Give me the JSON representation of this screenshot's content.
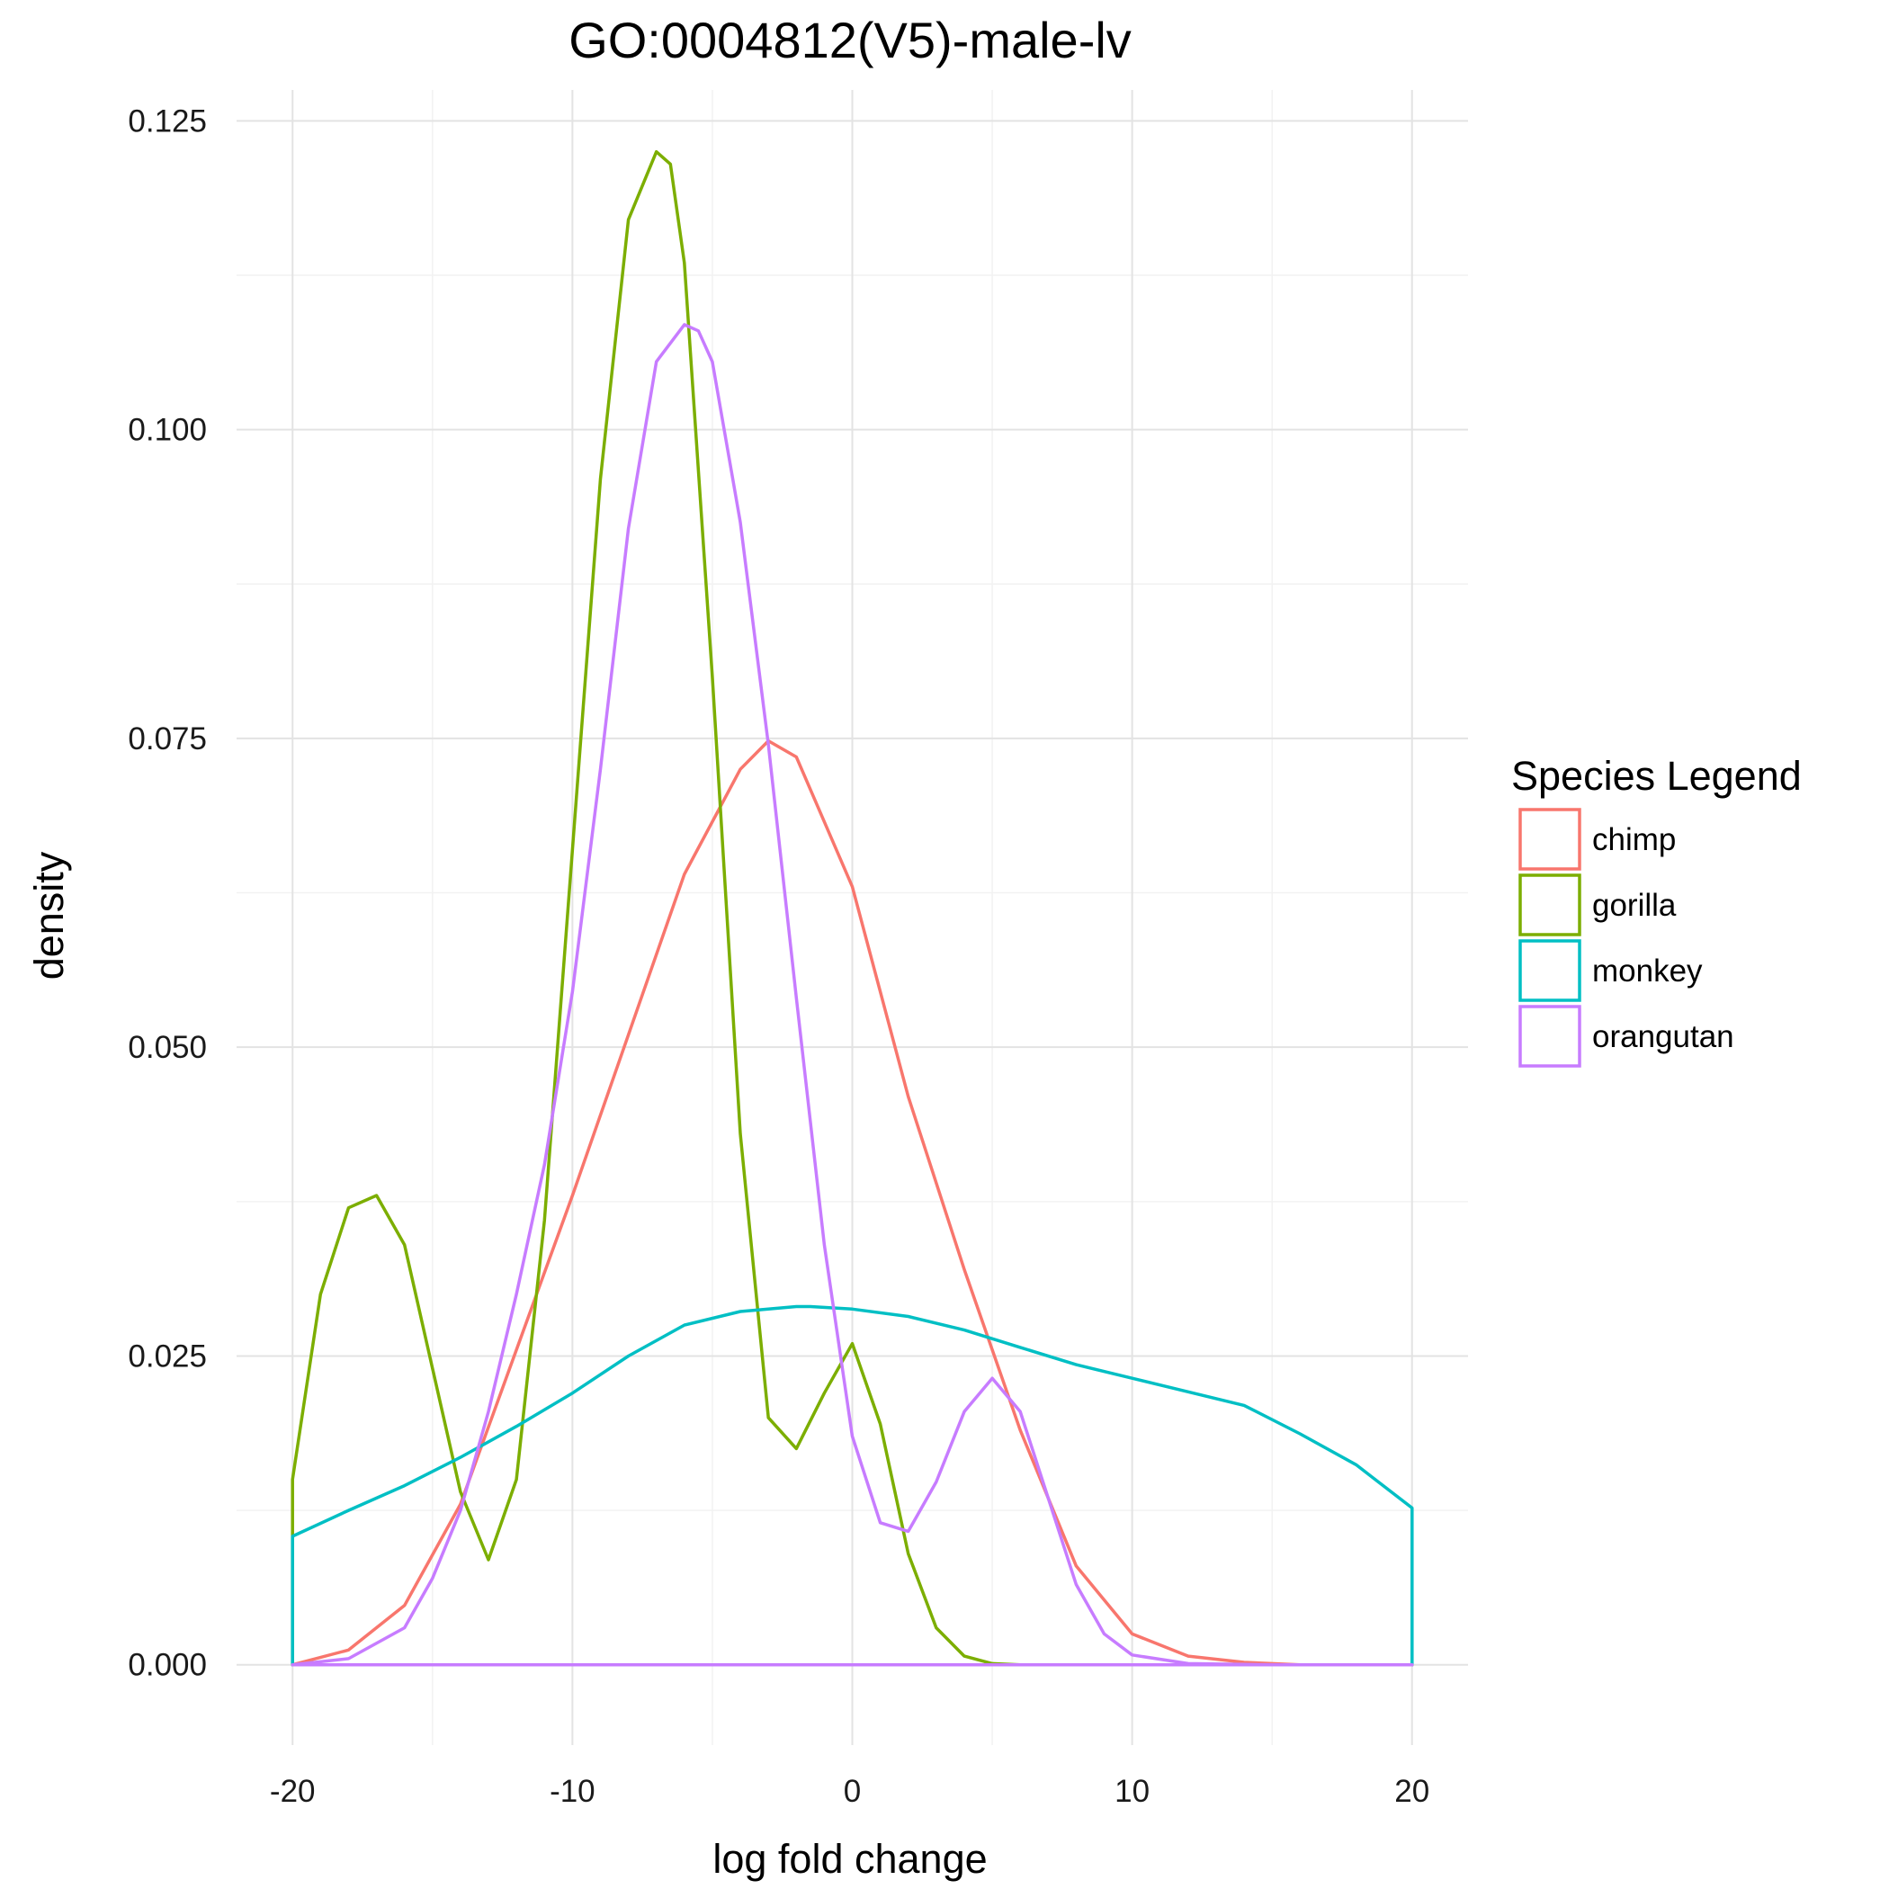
{
  "chart_data": {
    "type": "line",
    "title": "GO:0004812(V5)-male-lv",
    "xlabel": "log fold change",
    "ylabel": "density",
    "xlim": [
      -22,
      22
    ],
    "ylim": [
      -0.0065,
      0.1275
    ],
    "x_ticks": [
      -20,
      -10,
      0,
      10,
      20
    ],
    "x_tick_labels": [
      "-20",
      "-10",
      "0",
      "10",
      "20"
    ],
    "y_ticks": [
      0,
      0.025,
      0.05,
      0.075,
      0.1,
      0.125
    ],
    "y_tick_labels": [
      "0.000",
      "0.025",
      "0.050",
      "0.075",
      "0.100",
      "0.125"
    ],
    "grid": true,
    "legend": {
      "title": "Species Legend",
      "position": "right"
    },
    "series": [
      {
        "name": "chimp",
        "color": "#F8766D",
        "x": [
          -20,
          -18,
          -16,
          -14,
          -12,
          -10,
          -8,
          -6,
          -4,
          -3,
          -2,
          0,
          2,
          4,
          6,
          8,
          10,
          12,
          14,
          16,
          18,
          20
        ],
        "y": [
          0,
          0.0012,
          0.0048,
          0.013,
          0.0255,
          0.038,
          0.051,
          0.064,
          0.0725,
          0.0748,
          0.0735,
          0.063,
          0.046,
          0.032,
          0.019,
          0.008,
          0.0025,
          0.0007,
          0.0002,
          0,
          0,
          0
        ]
      },
      {
        "name": "gorilla",
        "color": "#7CAE00",
        "x": [
          -20,
          -19,
          -18,
          -17,
          -16,
          -15,
          -14,
          -13,
          -12,
          -11,
          -10,
          -9,
          -8,
          -7,
          -6.5,
          -6,
          -5,
          -4,
          -3,
          -2,
          -1,
          0,
          1,
          2,
          3,
          4,
          5,
          6,
          8,
          10,
          15,
          20
        ],
        "y": [
          0.015,
          0.03,
          0.037,
          0.038,
          0.034,
          0.024,
          0.014,
          0.0085,
          0.015,
          0.036,
          0.066,
          0.096,
          0.117,
          0.1225,
          0.1215,
          0.1135,
          0.08,
          0.043,
          0.02,
          0.0175,
          0.022,
          0.026,
          0.0195,
          0.009,
          0.003,
          0.0007,
          0.0001,
          0,
          0,
          0,
          0,
          0
        ]
      },
      {
        "name": "monkey",
        "color": "#00BFC4",
        "x": [
          -20,
          -18,
          -16,
          -14,
          -12,
          -10,
          -8,
          -6,
          -4,
          -2,
          -1.5,
          0,
          2,
          4,
          6,
          8,
          10,
          12,
          14,
          16,
          18,
          20
        ],
        "y": [
          0.0104,
          0.0125,
          0.0145,
          0.0168,
          0.0193,
          0.022,
          0.025,
          0.0275,
          0.0286,
          0.029,
          0.029,
          0.0288,
          0.0282,
          0.0271,
          0.0257,
          0.0243,
          0.0232,
          0.0221,
          0.021,
          0.0187,
          0.0162,
          0.0127
        ]
      },
      {
        "name": "orangutan",
        "color": "#C77CFF",
        "x": [
          -20,
          -18,
          -16,
          -15,
          -14,
          -13,
          -12,
          -11,
          -10,
          -9,
          -8,
          -7,
          -6,
          -5.5,
          -5,
          -4,
          -3,
          -2,
          -1,
          0,
          1,
          2,
          3,
          4,
          5,
          6,
          7,
          8,
          9,
          10,
          12,
          15,
          20
        ],
        "y": [
          0,
          0.0005,
          0.003,
          0.007,
          0.0125,
          0.0205,
          0.03,
          0.0405,
          0.0545,
          0.0725,
          0.092,
          0.1055,
          0.1085,
          0.108,
          0.1055,
          0.0925,
          0.0745,
          0.054,
          0.034,
          0.0185,
          0.0115,
          0.0108,
          0.0148,
          0.0205,
          0.0232,
          0.0205,
          0.0135,
          0.0065,
          0.0025,
          0.0008,
          0.0001,
          0,
          0
        ]
      }
    ]
  }
}
